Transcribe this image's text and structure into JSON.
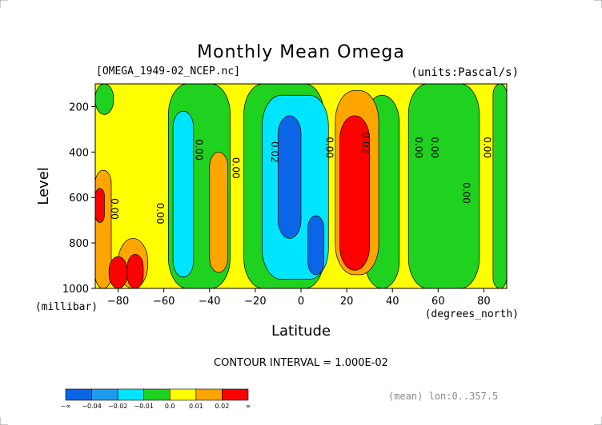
{
  "chart_data": {
    "type": "heatmap",
    "title": "Monthly Mean Omega",
    "file_label": "[OMEGA_1949-02_NCEP.nc]",
    "units_label": "(units:Pascal/s)",
    "xlabel": "Latitude",
    "x_unit_label": "(degrees_north)",
    "ylabel": "Level",
    "y_unit_label": "(millibar)",
    "xlim": [
      -90,
      90
    ],
    "ylim": [
      1000,
      100
    ],
    "x_ticks": [
      -80,
      -60,
      -40,
      -20,
      0,
      20,
      40,
      60,
      80
    ],
    "y_ticks": [
      200,
      400,
      600,
      800,
      1000
    ],
    "contour_interval_text": "CONTOUR INTERVAL = 1.000E-02",
    "mean_note": "(mean) lon:0..357.5",
    "grid": false,
    "legend_position": "bottom-left",
    "colorbar": {
      "labels": [
        "-∞",
        "-0.04",
        "-0.02",
        "-0.01",
        "0.0",
        "0.01",
        "0.02",
        "∞"
      ],
      "colors": [
        "#0a66e6",
        "#1e9bf0",
        "#00e5ff",
        "#1fd21f",
        "#ffff00",
        "#ffa500",
        "#ff0000"
      ]
    },
    "contour_labels": [
      {
        "text": "0.00",
        "lat": -83,
        "level": 650
      },
      {
        "text": "0.00",
        "lat": -63,
        "level": 670
      },
      {
        "text": "0.00",
        "lat": -46,
        "level": 390
      },
      {
        "text": "0.00",
        "lat": -30,
        "level": 470
      },
      {
        "text": "0.02",
        "lat": -13,
        "level": 400
      },
      {
        "text": "0.00",
        "lat": 11,
        "level": 380
      },
      {
        "text": "0.02",
        "lat": 27,
        "level": 360
      },
      {
        "text": "0.00",
        "lat": 50,
        "level": 380
      },
      {
        "text": "0.00",
        "lat": 57,
        "level": 380
      },
      {
        "text": "0.00",
        "lat": 80,
        "level": 380
      },
      {
        "text": "0.00",
        "lat": 71,
        "level": 580
      }
    ],
    "regions": [
      {
        "category": "yellow",
        "lat": [
          -90,
          90
        ],
        "level": [
          100,
          1000
        ]
      },
      {
        "category": "green",
        "lat": [
          -90,
          -82
        ],
        "level": [
          100,
          235
        ]
      },
      {
        "category": "green",
        "lat": [
          -58,
          -31
        ],
        "level": [
          100,
          1000
        ]
      },
      {
        "category": "green",
        "lat": [
          -25,
          10
        ],
        "level": [
          100,
          1000
        ]
      },
      {
        "category": "green",
        "lat": [
          28,
          43
        ],
        "level": [
          150,
          1000
        ]
      },
      {
        "category": "green",
        "lat": [
          47,
          78
        ],
        "level": [
          100,
          1000
        ]
      },
      {
        "category": "green",
        "lat": [
          84,
          90
        ],
        "level": [
          100,
          1000
        ]
      },
      {
        "category": "cyan",
        "lat": [
          -56,
          -47
        ],
        "level": [
          220,
          950
        ]
      },
      {
        "category": "cyan",
        "lat": [
          -17,
          12
        ],
        "level": [
          150,
          960
        ]
      },
      {
        "category": "blue",
        "lat": [
          -10,
          0
        ],
        "level": [
          240,
          780
        ]
      },
      {
        "category": "blue",
        "lat": [
          3,
          10
        ],
        "level": [
          680,
          940
        ]
      },
      {
        "category": "orange",
        "lat": [
          -40,
          -32
        ],
        "level": [
          400,
          930
        ]
      },
      {
        "category": "orange",
        "lat": [
          15,
          34
        ],
        "level": [
          130,
          940
        ]
      },
      {
        "category": "red",
        "lat": [
          17,
          30
        ],
        "level": [
          240,
          920
        ]
      },
      {
        "category": "orange",
        "lat": [
          -90,
          -83
        ],
        "level": [
          480,
          1000
        ]
      },
      {
        "category": "red",
        "lat": [
          -90,
          -86
        ],
        "level": [
          560,
          710
        ]
      },
      {
        "category": "orange",
        "lat": [
          -80,
          -67
        ],
        "level": [
          780,
          1000
        ]
      },
      {
        "category": "red",
        "lat": [
          -76,
          -69
        ],
        "level": [
          850,
          1000
        ]
      },
      {
        "category": "red",
        "lat": [
          -84,
          -76
        ],
        "level": [
          860,
          1000
        ]
      }
    ]
  }
}
